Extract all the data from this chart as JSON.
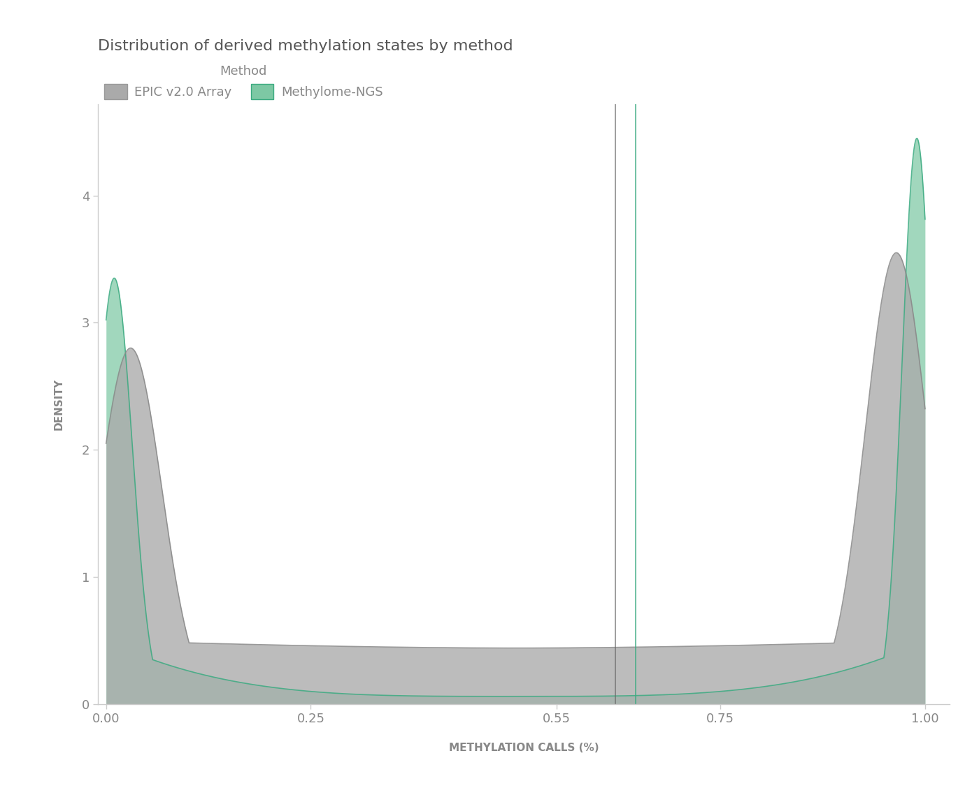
{
  "title": "Distribution of derived methylation states by method",
  "xlabel": "METHYLATION CALLS (%)",
  "ylabel": "DENSITY",
  "legend_title": "Method",
  "legend_entries": [
    "EPIC v2.0 Array",
    "Methylome-NGS"
  ],
  "epic_color": "#aaaaaa",
  "ngs_color": "#7dc8a4",
  "epic_edge_color": "#888888",
  "ngs_edge_color": "#3aaa80",
  "epic_vline": 0.622,
  "ngs_vline": 0.647,
  "epic_vline_color": "#666666",
  "ngs_vline_color": "#3aaa80",
  "xlim": [
    -0.01,
    1.03
  ],
  "ylim": [
    0,
    4.72
  ],
  "xticks": [
    0.0,
    0.25,
    0.55,
    0.75,
    1.0
  ],
  "yticks": [
    0,
    1,
    2,
    3,
    4
  ],
  "background_color": "#ffffff",
  "figsize": [
    14.0,
    11.44
  ],
  "dpi": 100,
  "title_fontsize": 16,
  "axis_label_fontsize": 11,
  "tick_fontsize": 13,
  "legend_fontsize": 13
}
